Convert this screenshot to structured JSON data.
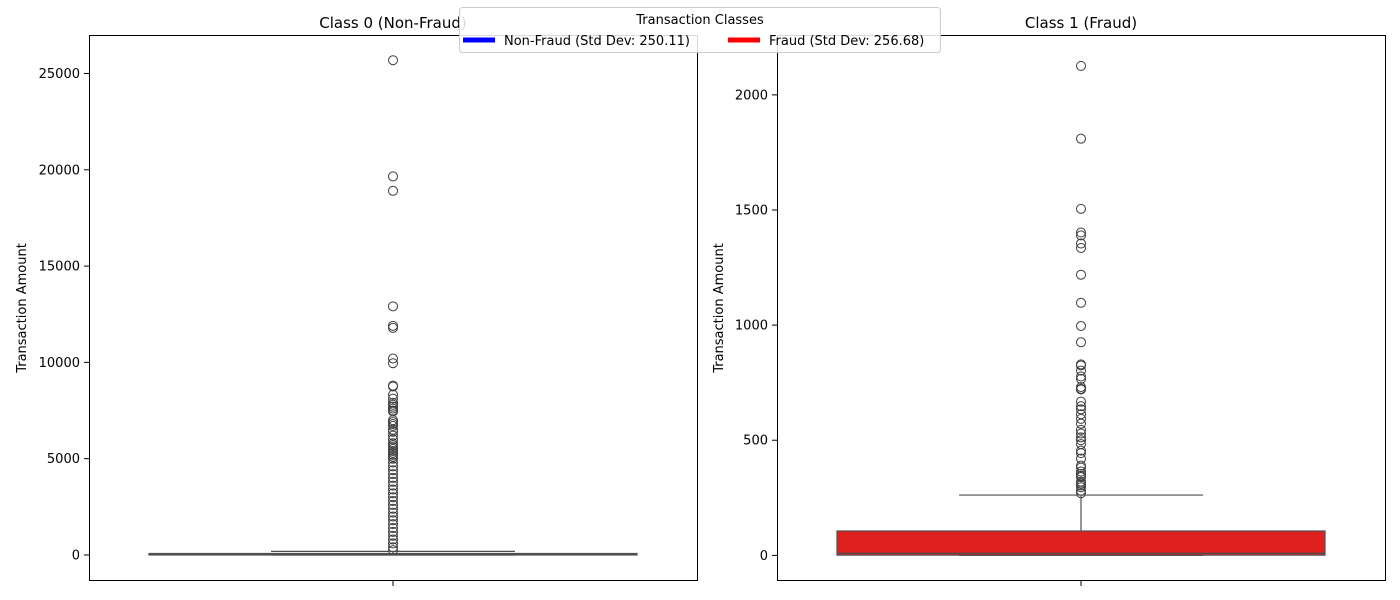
{
  "legend": {
    "title": "Transaction Classes",
    "entries": [
      {
        "label": "Non-Fraud (Std Dev: 250.11)",
        "color": "#0000ff"
      },
      {
        "label": "Fraud (Std Dev: 256.68)",
        "color": "#ff0000"
      }
    ],
    "placement": "top-center"
  },
  "chart_data": [
    {
      "type": "box",
      "title": "Class 0 (Non-Fraud)",
      "xlabel": "",
      "ylabel": "Transaction Amount",
      "ylim": [
        -1300,
        27000
      ],
      "yticks": [
        0,
        5000,
        10000,
        15000,
        20000,
        25000
      ],
      "grid": false,
      "box": {
        "color": "#0000ff",
        "q1": 5.6,
        "median": 22,
        "q3": 77,
        "whisker_low": 0,
        "whisker_high": 185
      },
      "outliers": [
        25691,
        19656,
        18910,
        12910,
        11898,
        11789,
        10199,
        9958,
        8790,
        8750,
        8320,
        8120,
        7900,
        7800,
        7700,
        7600,
        7500,
        7450,
        7000,
        6900,
        6800,
        6700,
        6500,
        6400,
        6200,
        6000,
        5800,
        5700,
        5600,
        5500,
        5400,
        5300,
        5200,
        5100,
        5000,
        4800,
        4600,
        4400,
        4200,
        4000,
        3800,
        3600,
        3400,
        3200,
        3000,
        2800,
        2600,
        2400,
        2200,
        2000,
        1800,
        1600,
        1400,
        1200,
        1000,
        800,
        600,
        400,
        250
      ]
    },
    {
      "type": "box",
      "title": "Class 1 (Fraud)",
      "xlabel": "",
      "ylabel": "Transaction Amount",
      "ylim": [
        -107,
        2260
      ],
      "yticks": [
        0,
        500,
        1000,
        1500,
        2000
      ],
      "grid": false,
      "box": {
        "color": "#ff0000",
        "q1": 1,
        "median": 9.25,
        "q3": 105.89,
        "whisker_low": 0,
        "whisker_high": 262
      },
      "outliers": [
        2125.87,
        1809.68,
        1504.93,
        1402.16,
        1389.56,
        1354.25,
        1335,
        1218.89,
        1096.99,
        996.27,
        925.31,
        829.41,
        824.83,
        802.52,
        776.83,
        766.36,
        730.86,
        723.21,
        720.38,
        667.55,
        648,
        634.3,
        612.76,
        592.9,
        572,
        545,
        529,
        512.25,
        500,
        483,
        455,
        444,
        420,
        390,
        381,
        364,
        354,
        345,
        340,
        320,
        311.91,
        304,
        296,
        281,
        270
      ]
    }
  ]
}
